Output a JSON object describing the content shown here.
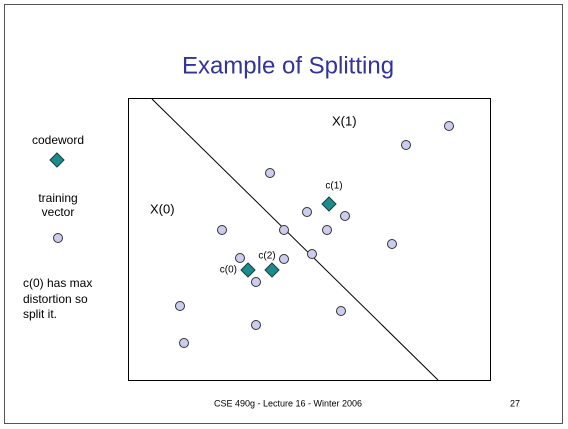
{
  "header": {
    "title": "Example of Splitting"
  },
  "legend": {
    "codeword": "codeword",
    "training": [
      "training",
      "vector"
    ],
    "note": [
      "c(0) has max",
      "distortion so",
      "split it."
    ]
  },
  "diagram": {
    "regions": [
      "X(0)",
      "X(1)"
    ],
    "codewords": [
      "c(0)",
      "c(1)",
      "c(2)"
    ]
  },
  "footer": {
    "text": "CSE 490g - Lecture 16 - Winter 2006",
    "page": "27"
  }
}
